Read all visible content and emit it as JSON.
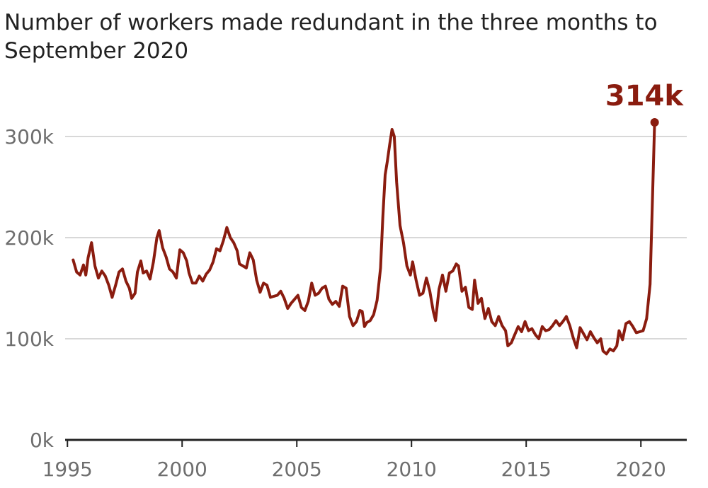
{
  "chart_data": {
    "type": "line",
    "title": "Number of workers made redundant in the three months to September 2020",
    "xlabel": "",
    "ylabel": "",
    "x_ticks": [
      "1995",
      "2000",
      "2005",
      "2010",
      "2015",
      "2020"
    ],
    "y_ticks": [
      "0k",
      "100k",
      "200k",
      "300k"
    ],
    "xlim": [
      1994.9,
      2022.0
    ],
    "ylim": [
      0,
      300000
    ],
    "grid": true,
    "legend": "none",
    "series_color": "#8a1c0f",
    "gridline_color": "#cccccc",
    "axis_color": "#222222",
    "callout": {
      "label": "314k",
      "x": 2020.6,
      "y": 314000
    },
    "series": [
      {
        "points": [
          [
            1995.25,
            178000
          ],
          [
            1995.4,
            166000
          ],
          [
            1995.55,
            163000
          ],
          [
            1995.7,
            173000
          ],
          [
            1995.8,
            163000
          ],
          [
            1995.9,
            180000
          ],
          [
            1996.05,
            195000
          ],
          [
            1996.2,
            172000
          ],
          [
            1996.35,
            160000
          ],
          [
            1996.5,
            167000
          ],
          [
            1996.65,
            162000
          ],
          [
            1996.8,
            153000
          ],
          [
            1996.95,
            141000
          ],
          [
            1997.1,
            153000
          ],
          [
            1997.25,
            166000
          ],
          [
            1997.4,
            169000
          ],
          [
            1997.55,
            157000
          ],
          [
            1997.7,
            150000
          ],
          [
            1997.8,
            140000
          ],
          [
            1997.95,
            145000
          ],
          [
            1998.05,
            166000
          ],
          [
            1998.2,
            177000
          ],
          [
            1998.3,
            165000
          ],
          [
            1998.45,
            167000
          ],
          [
            1998.6,
            159000
          ],
          [
            1998.75,
            176000
          ],
          [
            1998.9,
            200000
          ],
          [
            1999.0,
            207000
          ],
          [
            1999.15,
            190000
          ],
          [
            1999.3,
            181000
          ],
          [
            1999.45,
            169000
          ],
          [
            1999.6,
            166000
          ],
          [
            1999.75,
            160000
          ],
          [
            1999.9,
            188000
          ],
          [
            2000.05,
            185000
          ],
          [
            2000.2,
            177000
          ],
          [
            2000.3,
            165000
          ],
          [
            2000.45,
            155000
          ],
          [
            2000.6,
            155000
          ],
          [
            2000.75,
            162000
          ],
          [
            2000.9,
            157000
          ],
          [
            2001.05,
            164000
          ],
          [
            2001.2,
            168000
          ],
          [
            2001.35,
            176000
          ],
          [
            2001.5,
            189000
          ],
          [
            2001.65,
            187000
          ],
          [
            2001.8,
            197000
          ],
          [
            2001.95,
            210000
          ],
          [
            2002.1,
            200000
          ],
          [
            2002.25,
            195000
          ],
          [
            2002.4,
            187000
          ],
          [
            2002.5,
            174000
          ],
          [
            2002.65,
            172000
          ],
          [
            2002.8,
            170000
          ],
          [
            2002.95,
            185000
          ],
          [
            2003.1,
            178000
          ],
          [
            2003.25,
            158000
          ],
          [
            2003.4,
            146000
          ],
          [
            2003.55,
            155000
          ],
          [
            2003.7,
            153000
          ],
          [
            2003.85,
            141000
          ],
          [
            2004.0,
            142000
          ],
          [
            2004.15,
            143000
          ],
          [
            2004.3,
            147000
          ],
          [
            2004.45,
            140000
          ],
          [
            2004.6,
            130000
          ],
          [
            2004.75,
            135000
          ],
          [
            2004.9,
            139000
          ],
          [
            2005.05,
            143000
          ],
          [
            2005.2,
            131000
          ],
          [
            2005.35,
            128000
          ],
          [
            2005.5,
            137000
          ],
          [
            2005.65,
            155000
          ],
          [
            2005.8,
            143000
          ],
          [
            2005.95,
            145000
          ],
          [
            2006.1,
            150000
          ],
          [
            2006.25,
            152000
          ],
          [
            2006.4,
            139000
          ],
          [
            2006.55,
            134000
          ],
          [
            2006.7,
            137000
          ],
          [
            2006.85,
            132000
          ],
          [
            2007.0,
            152000
          ],
          [
            2007.15,
            150000
          ],
          [
            2007.3,
            122000
          ],
          [
            2007.45,
            113000
          ],
          [
            2007.6,
            117000
          ],
          [
            2007.75,
            128000
          ],
          [
            2007.85,
            127000
          ],
          [
            2007.95,
            112000
          ],
          [
            2008.05,
            116000
          ],
          [
            2008.2,
            118000
          ],
          [
            2008.35,
            124000
          ],
          [
            2008.5,
            138000
          ],
          [
            2008.65,
            170000
          ],
          [
            2008.75,
            220000
          ],
          [
            2008.85,
            262000
          ],
          [
            2008.95,
            276000
          ],
          [
            2009.05,
            292000
          ],
          [
            2009.15,
            307000
          ],
          [
            2009.25,
            300000
          ],
          [
            2009.35,
            255000
          ],
          [
            2009.5,
            212000
          ],
          [
            2009.65,
            195000
          ],
          [
            2009.8,
            172000
          ],
          [
            2009.95,
            163000
          ],
          [
            2010.05,
            176000
          ],
          [
            2010.2,
            158000
          ],
          [
            2010.35,
            143000
          ],
          [
            2010.5,
            145000
          ],
          [
            2010.65,
            160000
          ],
          [
            2010.8,
            147000
          ],
          [
            2010.95,
            127000
          ],
          [
            2011.05,
            118000
          ],
          [
            2011.2,
            149000
          ],
          [
            2011.35,
            163000
          ],
          [
            2011.5,
            147000
          ],
          [
            2011.65,
            165000
          ],
          [
            2011.8,
            167000
          ],
          [
            2011.95,
            174000
          ],
          [
            2012.05,
            172000
          ],
          [
            2012.2,
            147000
          ],
          [
            2012.35,
            151000
          ],
          [
            2012.5,
            131000
          ],
          [
            2012.65,
            129000
          ],
          [
            2012.75,
            158000
          ],
          [
            2012.9,
            135000
          ],
          [
            2013.05,
            140000
          ],
          [
            2013.2,
            120000
          ],
          [
            2013.35,
            130000
          ],
          [
            2013.5,
            117000
          ],
          [
            2013.65,
            113000
          ],
          [
            2013.8,
            122000
          ],
          [
            2013.95,
            113000
          ],
          [
            2014.1,
            108000
          ],
          [
            2014.2,
            93000
          ],
          [
            2014.35,
            96000
          ],
          [
            2014.5,
            104000
          ],
          [
            2014.65,
            112000
          ],
          [
            2014.8,
            107000
          ],
          [
            2014.95,
            117000
          ],
          [
            2015.1,
            108000
          ],
          [
            2015.25,
            110000
          ],
          [
            2015.4,
            104000
          ],
          [
            2015.55,
            100000
          ],
          [
            2015.7,
            112000
          ],
          [
            2015.85,
            108000
          ],
          [
            2016.0,
            109000
          ],
          [
            2016.15,
            113000
          ],
          [
            2016.3,
            118000
          ],
          [
            2016.45,
            113000
          ],
          [
            2016.6,
            117000
          ],
          [
            2016.75,
            122000
          ],
          [
            2016.9,
            113000
          ],
          [
            2017.05,
            101000
          ],
          [
            2017.2,
            91000
          ],
          [
            2017.35,
            111000
          ],
          [
            2017.5,
            105000
          ],
          [
            2017.65,
            99000
          ],
          [
            2017.8,
            107000
          ],
          [
            2017.95,
            101000
          ],
          [
            2018.1,
            96000
          ],
          [
            2018.25,
            100000
          ],
          [
            2018.35,
            88000
          ],
          [
            2018.5,
            85000
          ],
          [
            2018.65,
            90000
          ],
          [
            2018.8,
            88000
          ],
          [
            2018.95,
            93000
          ],
          [
            2019.05,
            108000
          ],
          [
            2019.2,
            99000
          ],
          [
            2019.35,
            115000
          ],
          [
            2019.5,
            117000
          ],
          [
            2019.65,
            112000
          ],
          [
            2019.8,
            106000
          ],
          [
            2019.95,
            107000
          ],
          [
            2020.1,
            108000
          ],
          [
            2020.25,
            120000
          ],
          [
            2020.4,
            154000
          ],
          [
            2020.6,
            314000
          ]
        ]
      }
    ]
  }
}
